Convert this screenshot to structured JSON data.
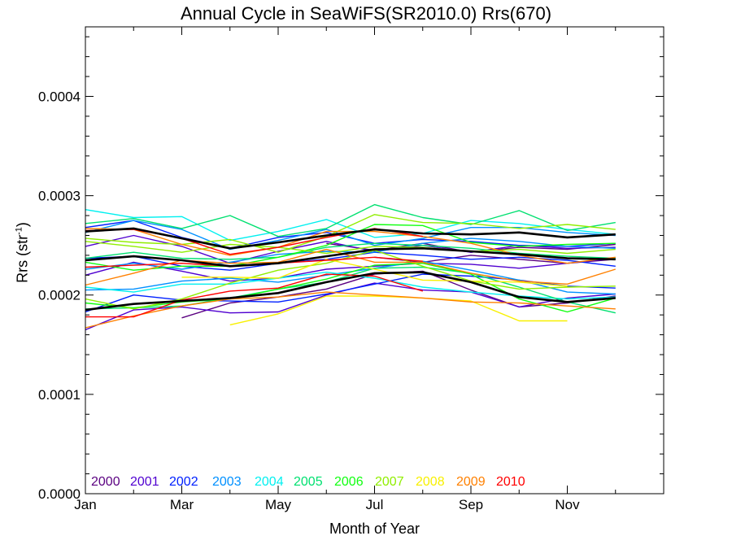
{
  "chart_data": {
    "type": "line",
    "title": "Annual Cycle in SeaWiFS(SR2010.0) Rrs(670)",
    "xlabel": "Month of Year",
    "ylabel": "Rrs (str",
    "ylabel_sup": "-1",
    "ylabel_close": ")",
    "xlim": [
      1,
      13
    ],
    "ylim": [
      0.0,
      0.00047
    ],
    "x_ticks": [
      {
        "value": 1,
        "label": "Jan"
      },
      {
        "value": 3,
        "label": "Mar"
      },
      {
        "value": 5,
        "label": "May"
      },
      {
        "value": 7,
        "label": "Jul"
      },
      {
        "value": 9,
        "label": "Sep"
      },
      {
        "value": 11,
        "label": "Nov"
      }
    ],
    "y_ticks": [
      {
        "value": 0.0,
        "label": "0.0000"
      },
      {
        "value": 0.0001,
        "label": "0.0001"
      },
      {
        "value": 0.0002,
        "label": "0.0002"
      },
      {
        "value": 0.0003,
        "label": "0.0003"
      },
      {
        "value": 0.0004,
        "label": "0.0004"
      }
    ],
    "grid": false,
    "legend_position": "bottom-left",
    "x": [
      1,
      2,
      3,
      4,
      5,
      6,
      7,
      8,
      9,
      10,
      11,
      12
    ],
    "series": [
      {
        "name": "2000",
        "color": "#5a0080",
        "lines": [
          [
            null,
            null,
            null,
            null,
            null,
            null,
            0.000238,
            0.000233,
            0.00024,
            0.000236,
            0.000232,
            0.000236
          ],
          [
            null,
            null,
            0.000177,
            0.000192,
            0.000198,
            0.000206,
            0.000221,
            0.000224,
            0.000205,
            0.000188,
            0.000192,
            0.000199
          ],
          [
            null,
            null,
            null,
            null,
            null,
            0.000252,
            0.000245,
            0.000252,
            0.000243,
            0.000248,
            0.000246,
            0.000251
          ]
        ]
      },
      {
        "name": "2001",
        "color": "#5000d0",
        "lines": [
          [
            0.000165,
            0.000185,
            0.000188,
            0.000182,
            0.000183,
            0.0002,
            0.000212,
            0.000205,
            0.000203,
            0.000188,
            0.000197,
            0.000201
          ],
          [
            0.000249,
            0.00026,
            0.000249,
            0.000232,
            0.000244,
            0.000254,
            0.000244,
            0.00025,
            0.000243,
            0.00025,
            0.000247,
            0.000248
          ],
          [
            0.00022,
            0.000233,
            0.000224,
            0.000214,
            0.000217,
            0.000226,
            0.000229,
            0.000232,
            0.000231,
            0.000227,
            0.000232,
            0.000237
          ]
        ]
      },
      {
        "name": "2002",
        "color": "#0020ff",
        "lines": [
          [
            0.000268,
            0.000275,
            0.000258,
            0.000247,
            0.000258,
            0.000263,
            0.000252,
            0.000256,
            0.000254,
            0.00025,
            0.000249,
            0.000252
          ],
          [
            0.000183,
            0.0002,
            0.000195,
            0.000194,
            0.000193,
            0.000201,
            0.000211,
            0.000221,
            0.000219,
            0.000215,
            0.000209,
            0.000207
          ],
          [
            0.000237,
            0.000239,
            0.000229,
            0.000225,
            0.000232,
            0.000236,
            0.000243,
            0.00024,
            0.000236,
            0.000238,
            0.000235,
            0.000229
          ]
        ]
      },
      {
        "name": "2003",
        "color": "#0090ff",
        "lines": [
          [
            0.000263,
            0.000275,
            0.000266,
            0.000246,
            0.000255,
            0.000266,
            0.00025,
            0.000257,
            0.000268,
            0.000268,
            0.000263,
            0.00026
          ],
          [
            0.000205,
            0.000206,
            0.000214,
            0.000217,
            0.000213,
            0.00022,
            0.000227,
            0.000234,
            0.000225,
            0.000215,
            0.000203,
            0.000201
          ],
          [
            0.000226,
            0.000232,
            0.000226,
            0.000233,
            0.000241,
            0.000244,
            0.000243,
            0.000252,
            0.000257,
            0.000254,
            0.000249,
            0.000247
          ]
        ]
      },
      {
        "name": "2004",
        "color": "#00f0f0",
        "lines": [
          [
            0.000286,
            0.000278,
            0.000279,
            0.000255,
            0.000264,
            0.000276,
            0.000258,
            0.000262,
            0.000275,
            0.000272,
            0.000266,
            0.000261
          ],
          [
            0.000208,
            0.000203,
            0.000211,
            0.000211,
            0.000217,
            0.000223,
            0.000217,
            0.000208,
            0.000203,
            0.000199,
            0.000196,
            0.000198
          ]
        ]
      },
      {
        "name": "2005",
        "color": "#00e070",
        "lines": [
          [
            0.000272,
            0.000277,
            0.000267,
            0.00028,
            0.000259,
            0.000267,
            0.000291,
            0.000278,
            0.000271,
            0.000285,
            0.000265,
            0.000273
          ],
          [
            0.000186,
            0.000187,
            0.000189,
            0.000197,
            0.000206,
            0.000213,
            0.000227,
            0.000228,
            0.000222,
            0.000208,
            0.000193,
            0.000182
          ],
          [
            0.000237,
            0.000243,
            0.000237,
            0.000236,
            0.000238,
            0.000248,
            0.000252,
            0.00025,
            0.000247,
            0.000242,
            0.000239,
            0.000237
          ]
        ]
      },
      {
        "name": "2006",
        "color": "#10ff10",
        "lines": [
          [
            0.000233,
            0.000225,
            0.000229,
            0.000229,
            0.000238,
            0.00025,
            0.000271,
            0.00027,
            0.000253,
            0.000249,
            0.000251,
            0.000252
          ],
          [
            0.000192,
            0.000187,
            0.000193,
            0.000196,
            0.000206,
            0.000216,
            0.00023,
            0.000232,
            0.000221,
            0.000196,
            0.000183,
            0.000197
          ]
        ]
      },
      {
        "name": "2007",
        "color": "#90ee00",
        "lines": [
          [
            0.000257,
            0.000253,
            0.000251,
            0.000256,
            0.000243,
            0.000259,
            0.000281,
            0.000273,
            0.000272,
            0.000267,
            0.000271,
            0.000266
          ],
          [
            0.000196,
            0.000186,
            0.000196,
            0.000212,
            0.000225,
            0.000232,
            0.000245,
            0.000229,
            0.000214,
            0.000206,
            0.000208,
            0.000209
          ],
          [
            0.000254,
            0.000249,
            0.000243,
            0.000251,
            0.000248,
            0.000242,
            0.000249,
            0.000248,
            0.000244,
            0.000246,
            0.000242,
            0.000246
          ]
        ]
      },
      {
        "name": "2008",
        "color": "#f8f000",
        "lines": [
          [
            null,
            null,
            null,
            0.00017,
            0.000181,
            0.000199,
            0.000199,
            0.000197,
            0.000194,
            0.000174,
            0.000174,
            null
          ],
          [
            null,
            null,
            0.000218,
            0.000218,
            0.000217,
            0.000236,
            0.000226,
            0.000215,
            0.000214,
            0.000213,
            0.000209,
            null
          ]
        ]
      },
      {
        "name": "2009",
        "color": "#ff8000",
        "lines": [
          [
            0.000167,
            0.000179,
            0.000189,
            0.000196,
            0.000198,
            0.000203,
            0.0002,
            0.000197,
            0.000193,
            0.000192,
            0.000189,
            0.000186
          ],
          [
            0.00021,
            0.000222,
            0.000235,
            0.000232,
            0.000233,
            0.000246,
            0.000233,
            0.000233,
            0.000222,
            0.000214,
            0.000211,
            0.000226
          ],
          [
            0.000267,
            0.000266,
            0.000251,
            0.00024,
            0.000248,
            0.000264,
            0.000264,
            0.000259,
            0.000252,
            0.00024,
            0.000232,
            0.000238
          ]
        ]
      },
      {
        "name": "2010",
        "color": "#ff0000",
        "lines": [
          [
            0.000228,
            0.00023,
            0.000232,
            0.000229,
            0.000232,
            0.000235,
            0.000238,
            0.000234,
            null,
            null,
            null,
            null
          ],
          [
            0.000178,
            0.000178,
            0.000195,
            0.000204,
            0.000207,
            0.000221,
            0.000219,
            0.000204,
            null,
            null,
            null,
            null
          ],
          [
            0.000265,
            0.000266,
            0.000257,
            0.000241,
            0.000248,
            0.000258,
            0.000267,
            0.000259,
            null,
            null,
            null,
            null
          ]
        ]
      },
      {
        "color": "#000000",
        "lines": [
          [
            0.000264,
            0.000267,
            0.000257,
            0.000247,
            0.000253,
            0.00026,
            0.000266,
            0.000262,
            0.000261,
            0.000263,
            0.000258,
            0.000261
          ],
          [
            0.000235,
            0.000239,
            0.000235,
            0.000229,
            0.000232,
            0.000239,
            0.000246,
            0.000247,
            0.000244,
            0.000241,
            0.000237,
            0.000236
          ],
          [
            0.000185,
            0.000191,
            0.000194,
            0.000197,
            0.000202,
            0.000213,
            0.000222,
            0.000223,
            0.000213,
            0.000198,
            0.000193,
            0.000197
          ]
        ]
      }
    ]
  }
}
